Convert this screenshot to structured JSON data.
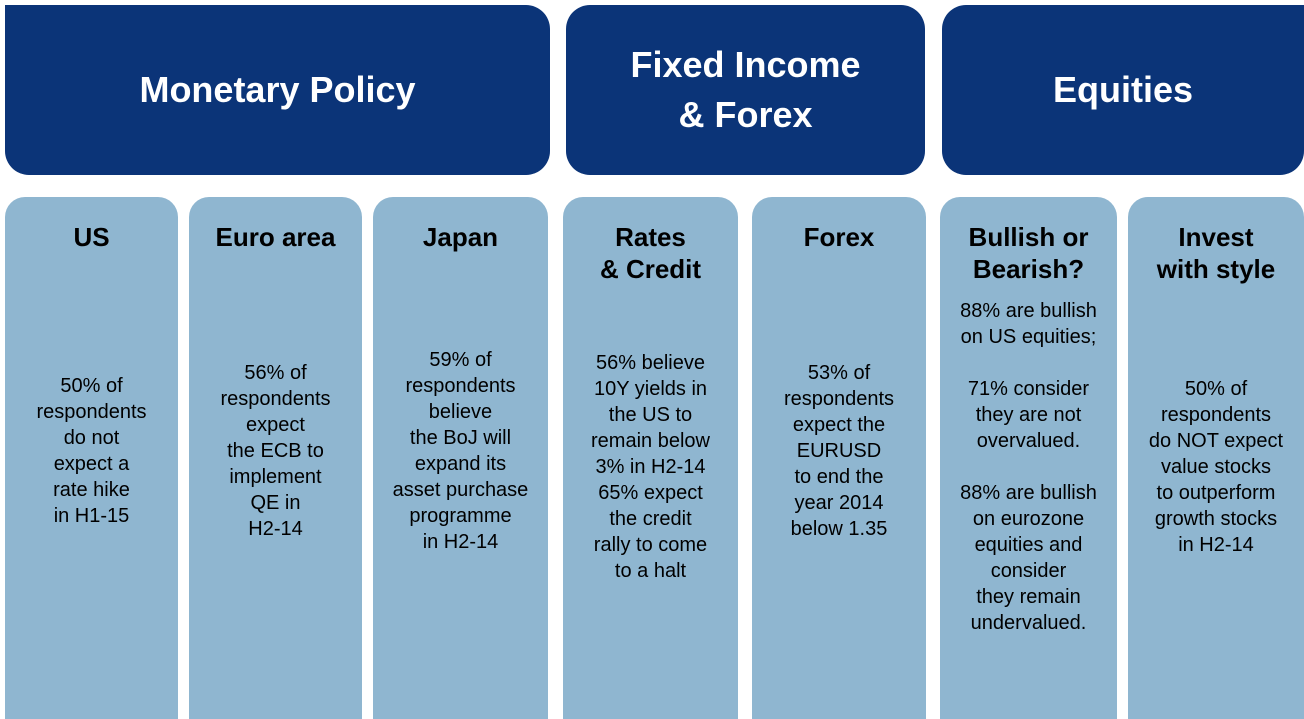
{
  "headers": [
    {
      "lines": [
        "Monetary Policy"
      ]
    },
    {
      "lines": [
        "Fixed Income",
        "& Forex"
      ]
    },
    {
      "lines": [
        "Equities"
      ]
    }
  ],
  "columns": [
    {
      "title": [
        "US"
      ],
      "body": [
        [
          "50% of",
          "respondents",
          "do not",
          "expect a",
          "rate hike",
          "in H1-15"
        ]
      ]
    },
    {
      "title": [
        "Euro area"
      ],
      "body": [
        [
          "56% of",
          "respondents",
          "expect",
          "the ECB to",
          "implement",
          "QE in",
          "H2-14"
        ]
      ]
    },
    {
      "title": [
        "Japan"
      ],
      "body": [
        [
          "59% of",
          "respondents",
          "believe",
          "the BoJ will",
          "expand its",
          "asset purchase",
          "programme",
          "in H2-14"
        ]
      ]
    },
    {
      "title": [
        "Rates",
        "& Credit"
      ],
      "body": [
        [
          "56% believe",
          "10Y yields in",
          "the US to",
          "remain below",
          "3% in H2-14",
          "65% expect",
          "the credit",
          "rally to come",
          "to a halt"
        ]
      ]
    },
    {
      "title": [
        "Forex"
      ],
      "body": [
        [
          "53% of",
          "respondents",
          "expect the",
          "EURUSD",
          "to end the",
          "year 2014",
          "below 1.35"
        ]
      ]
    },
    {
      "title": [
        "Bullish or",
        "Bearish?"
      ],
      "body": [
        [
          "88% are bullish",
          "on US equities;"
        ],
        [
          "71% consider",
          "they are not",
          "overvalued."
        ],
        [
          "88% are bullish",
          "on eurozone",
          "equities and",
          "consider",
          "they remain",
          "undervalued."
        ]
      ]
    },
    {
      "title": [
        "Invest",
        "with style"
      ],
      "body": [
        [
          "50% of",
          "respondents",
          "do NOT expect",
          "value stocks",
          "to outperform",
          "growth stocks",
          "in H2-14"
        ]
      ]
    }
  ]
}
